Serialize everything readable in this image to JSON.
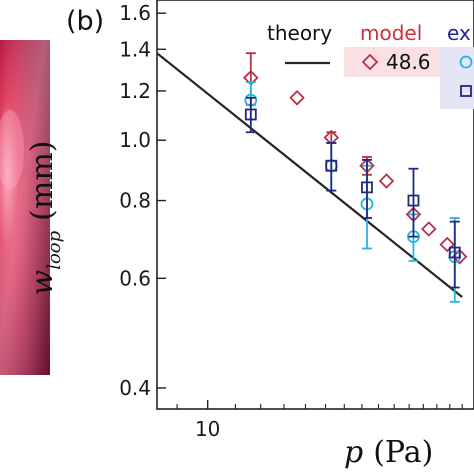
{
  "chart_data": {
    "type": "scatter",
    "panel_label": "(b)",
    "title": "",
    "xlabel": {
      "var": "p",
      "unit": "(Pa)"
    },
    "ylabel": {
      "var": "w",
      "sub": "loop",
      "unit": "(mm)"
    },
    "xscale": "log",
    "yscale": "log",
    "xlim": [
      8.4,
      25
    ],
    "ylim": [
      0.37,
      1.68
    ],
    "grid": false,
    "xticks": [
      {
        "value": 10,
        "label": "10"
      }
    ],
    "yticks": [
      {
        "value": 0.4,
        "label": "0.4"
      },
      {
        "value": 0.6,
        "label": "0.6"
      },
      {
        "value": 0.8,
        "label": "0.8"
      },
      {
        "value": 1.0,
        "label": "1.0"
      },
      {
        "value": 1.2,
        "label": "1.2"
      },
      {
        "value": 1.4,
        "label": "1.4"
      },
      {
        "value": 1.6,
        "label": "1.6"
      }
    ],
    "series": [
      {
        "name": "theory",
        "kind": "line",
        "color": "#262626",
        "x": [
          8.4,
          24
        ],
        "y": [
          1.38,
          0.56
        ]
      },
      {
        "name": "48.6",
        "kind": "scatter",
        "marker": "diamond",
        "color": "#b83047",
        "x": [
          11.6,
          13.6,
          15.3,
          17.3,
          18.5,
          20.3,
          21.4,
          22.8,
          23.8
        ],
        "y": [
          1.26,
          1.17,
          1.01,
          0.91,
          0.86,
          0.76,
          0.72,
          0.68,
          0.65
        ],
        "err": [
          0.12,
          null,
          0.02,
          0.03,
          null,
          null,
          null,
          null,
          null
        ]
      },
      {
        "name": "",
        "kind": "scatter",
        "marker": "circle",
        "color": "#26b5dd",
        "x": [
          11.6,
          15.3,
          17.3,
          20.3,
          23.4
        ],
        "y": [
          1.16,
          0.91,
          0.79,
          0.7,
          0.65
        ],
        "err": [
          0.08,
          0.08,
          0.12,
          0.06,
          0.1
        ]
      },
      {
        "name": "",
        "kind": "scatter",
        "marker": "square",
        "color": "#202a7e",
        "x": [
          11.6,
          15.3,
          17.3,
          20.3,
          23.4
        ],
        "y": [
          1.1,
          0.91,
          0.84,
          0.8,
          0.66
        ],
        "err": [
          0.07,
          0.08,
          0.09,
          0.1,
          0.08
        ]
      }
    ],
    "legend": {
      "placement": "top",
      "theory_label": "theory",
      "model_title": "model",
      "model_title_color": "#cf2f3a",
      "model_value": "48.6",
      "model_box_color": "#fbe0e3",
      "exp_title": "ex",
      "exp_title_color": "#23239a",
      "exp_box_color": "#e4e6f6"
    }
  }
}
